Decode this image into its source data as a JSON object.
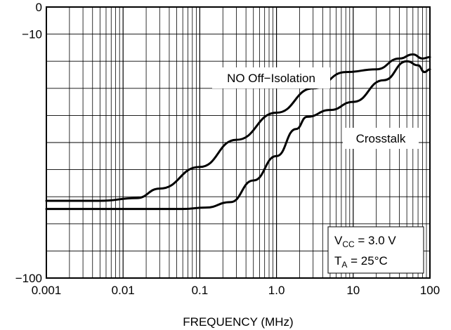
{
  "chart_data": {
    "type": "line",
    "title": "",
    "xlabel": "FREQUENCY (MHz)",
    "ylabel": "",
    "x_scale": "log",
    "xlim": [
      0.001,
      100
    ],
    "ylim": [
      -100,
      0
    ],
    "grid": true,
    "x_tick_labels": [
      "0.001",
      "0.01",
      "0.1",
      "1.0",
      "10",
      "100"
    ],
    "y_tick_labels": [
      "0",
      "−10",
      "−100"
    ],
    "series": [
      {
        "name": "NO Off−Isolation",
        "x": [
          0.001,
          0.005,
          0.015,
          0.03,
          0.1,
          0.3,
          1,
          3,
          8,
          20,
          40,
          60,
          80,
          100
        ],
        "y": [
          -71.5,
          -71.5,
          -70.5,
          -67,
          -59,
          -49,
          -39,
          -30,
          -24,
          -23,
          -19,
          -17.5,
          -19,
          -18.5
        ]
      },
      {
        "name": "Crosstalk",
        "x": [
          0.001,
          0.01,
          0.06,
          0.12,
          0.25,
          0.5,
          1,
          1.8,
          2.5,
          5,
          10,
          25,
          50,
          70,
          85,
          100
        ],
        "y": [
          -74.5,
          -74.5,
          -74.5,
          -74,
          -72,
          -64,
          -55,
          -45,
          -40.5,
          -38,
          -35,
          -27,
          -20,
          -21.5,
          -24,
          -23
        ]
      }
    ],
    "annotations": {
      "series1_label": "NO Off−Isolation",
      "series2_label": "Crosstalk",
      "cond_line1_main": "V",
      "cond_line1_sub": "CC",
      "cond_line1_rest": " = 3.0 V",
      "cond_line2_main": "T",
      "cond_line2_sub": "A",
      "cond_line2_rest": " = 25°C"
    }
  }
}
